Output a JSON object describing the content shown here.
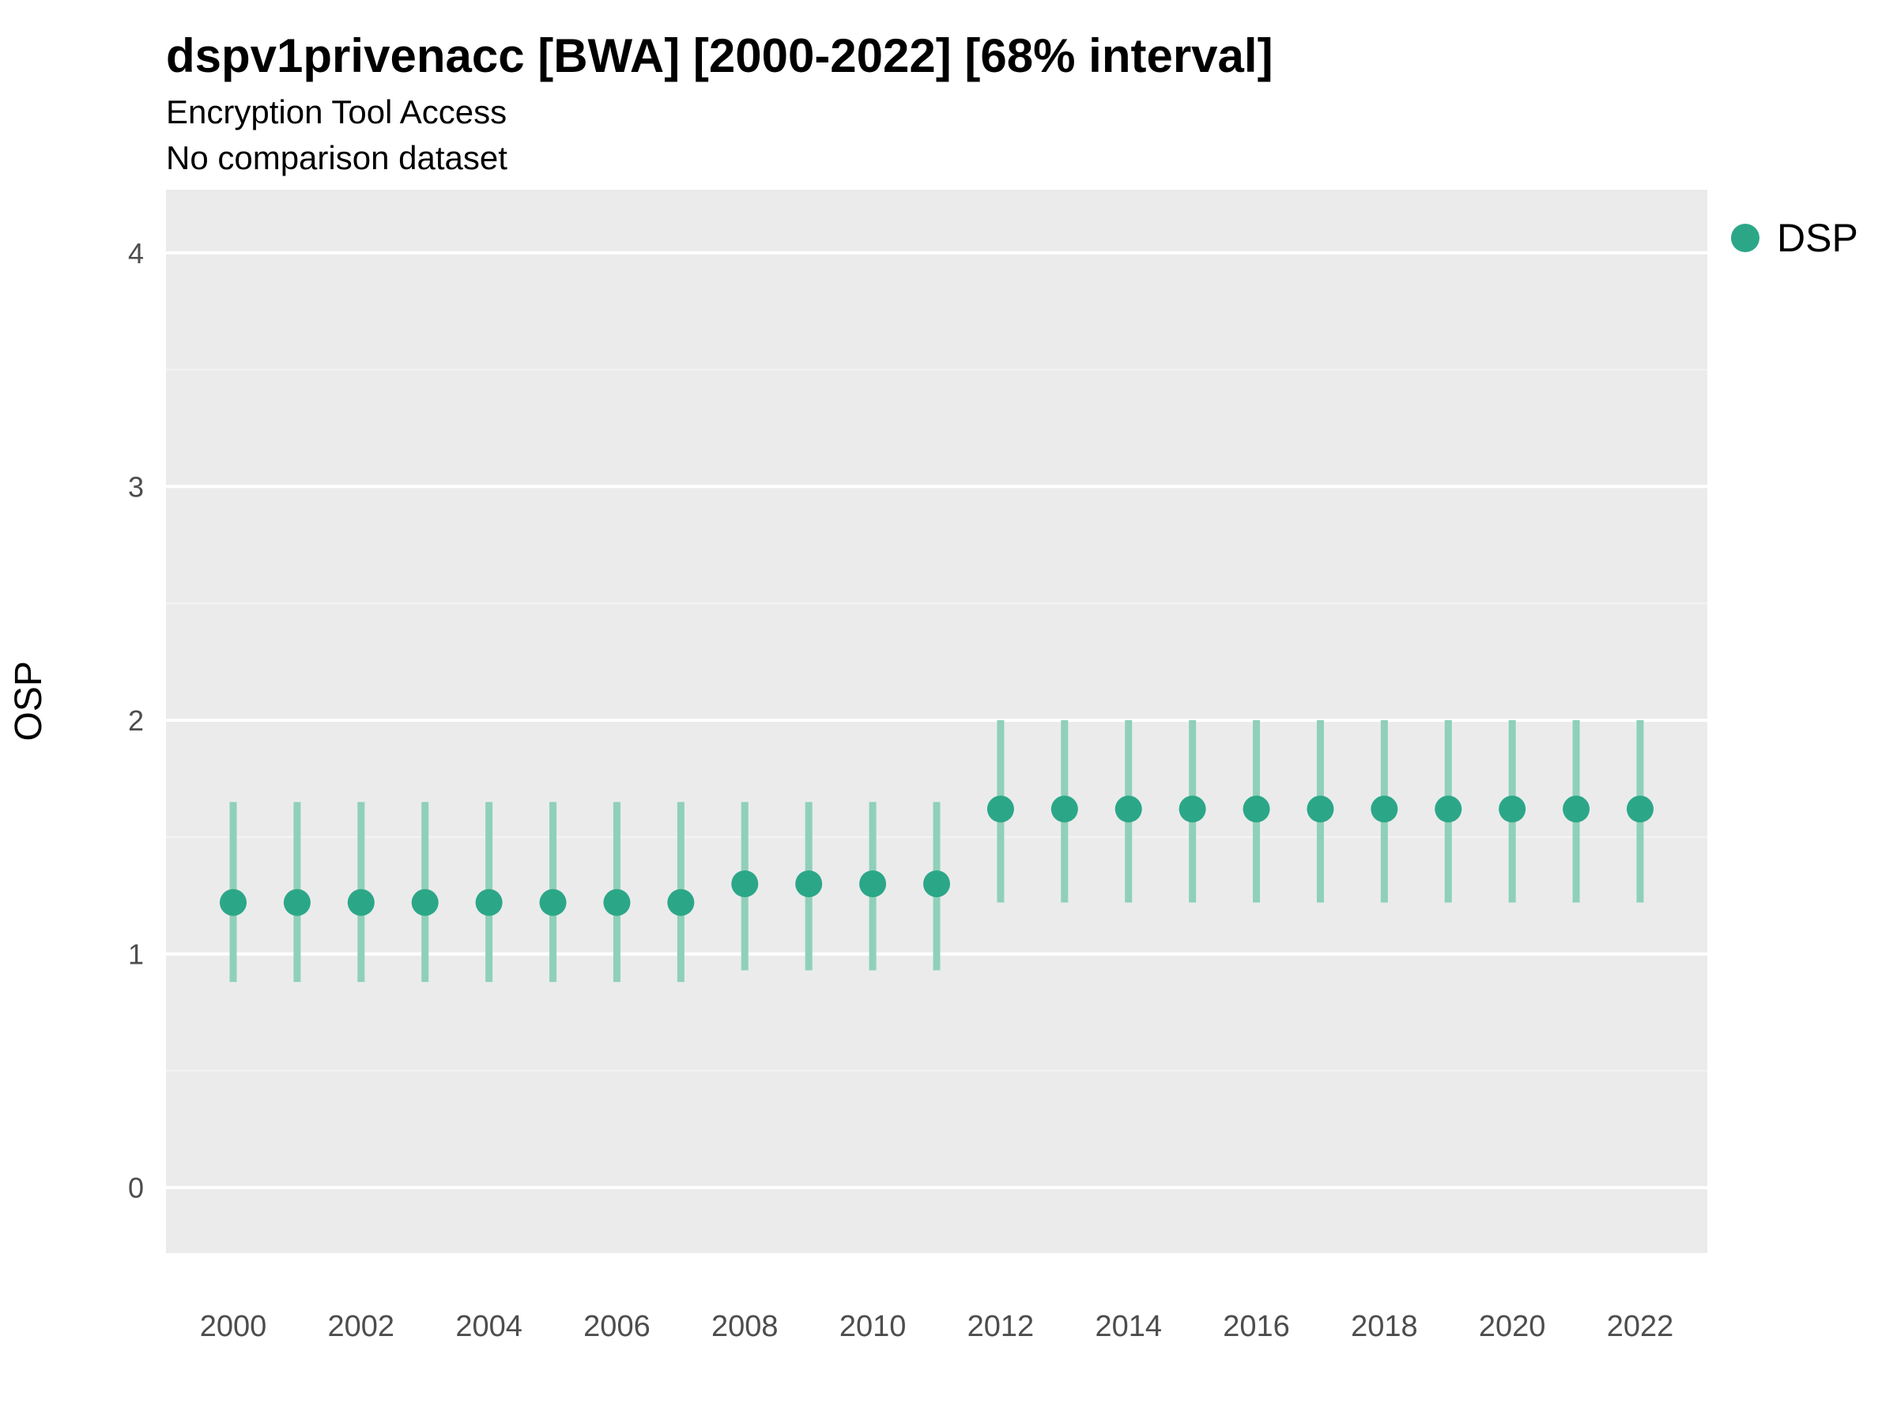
{
  "header": {
    "title": "dspv1privenacc [BWA] [2000-2022] [68% interval]",
    "subtitle": "Encryption Tool Access",
    "note": "No comparison dataset"
  },
  "legend": {
    "series_label": "DSP"
  },
  "chart_data": {
    "type": "scatter",
    "title": "dspv1privenacc [BWA] [2000-2022] [68% interval]",
    "subtitle": "Encryption Tool Access",
    "note": "No comparison dataset",
    "xlabel": "",
    "ylabel": "OSP",
    "legend_position": "right",
    "grid": true,
    "interval_label": "68% interval",
    "x": [
      2000,
      2001,
      2002,
      2003,
      2004,
      2005,
      2006,
      2007,
      2008,
      2009,
      2010,
      2011,
      2012,
      2013,
      2014,
      2015,
      2016,
      2017,
      2018,
      2019,
      2020,
      2021,
      2022
    ],
    "series": [
      {
        "name": "DSP",
        "values": [
          1.22,
          1.22,
          1.22,
          1.22,
          1.22,
          1.22,
          1.22,
          1.22,
          1.3,
          1.3,
          1.3,
          1.3,
          1.62,
          1.62,
          1.62,
          1.62,
          1.62,
          1.62,
          1.62,
          1.62,
          1.62,
          1.62,
          1.62
        ],
        "lower": [
          0.88,
          0.88,
          0.88,
          0.88,
          0.88,
          0.88,
          0.88,
          0.88,
          0.93,
          0.93,
          0.93,
          0.93,
          1.22,
          1.22,
          1.22,
          1.22,
          1.22,
          1.22,
          1.22,
          1.22,
          1.22,
          1.22,
          1.22
        ],
        "upper": [
          1.65,
          1.65,
          1.65,
          1.65,
          1.65,
          1.65,
          1.65,
          1.65,
          1.65,
          1.65,
          1.65,
          1.65,
          2.0,
          2.0,
          2.0,
          2.0,
          2.0,
          2.0,
          2.0,
          2.0,
          2.0,
          2.0,
          2.0
        ]
      }
    ],
    "ylim": [
      -0.28,
      4.27
    ],
    "yticks": [
      0,
      1,
      2,
      3,
      4
    ],
    "xticks": [
      2000,
      2002,
      2004,
      2006,
      2008,
      2010,
      2012,
      2014,
      2016,
      2018,
      2020,
      2022
    ],
    "colors": {
      "point": "#2BA787",
      "interval": "#8FD0BA",
      "panel_bg": "#EBEBEB",
      "grid_major": "#FFFFFF",
      "grid_minor": "#F4F4F4",
      "tick_text": "#4D4D4D"
    }
  }
}
